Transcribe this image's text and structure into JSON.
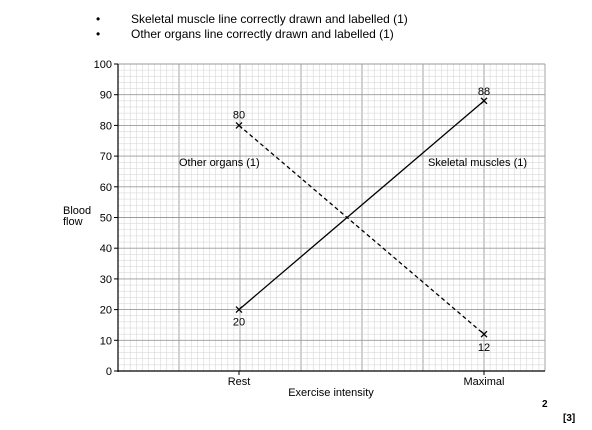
{
  "marking_points": [
    {
      "bullet": "•",
      "text": "Skeletal muscle line correctly drawn and labelled (1)"
    },
    {
      "bullet": "•",
      "text": "Other organs line correctly drawn and labelled (1)"
    }
  ],
  "marks": "2",
  "total": "[3]",
  "chart_data": {
    "type": "line",
    "title": "",
    "xlabel": "Exercise intensity",
    "ylabel": [
      "Blood",
      "flow"
    ],
    "categories": [
      "Rest",
      "Maximal"
    ],
    "ylim": [
      0,
      100
    ],
    "yticks": [
      "0",
      "10",
      "20",
      "30",
      "40",
      "50",
      "60",
      "70",
      "80",
      "90",
      "100"
    ],
    "grid": true,
    "series": [
      {
        "name": "Skeletal muscles (1)",
        "values": [
          20,
          88
        ],
        "value_labels": [
          "20",
          "88"
        ],
        "style": "solid",
        "color": "#000000"
      },
      {
        "name": "Other organs (1)",
        "values": [
          80,
          12
        ],
        "value_labels": [
          "80",
          "12"
        ],
        "style": "dashed",
        "color": "#000000"
      }
    ]
  }
}
